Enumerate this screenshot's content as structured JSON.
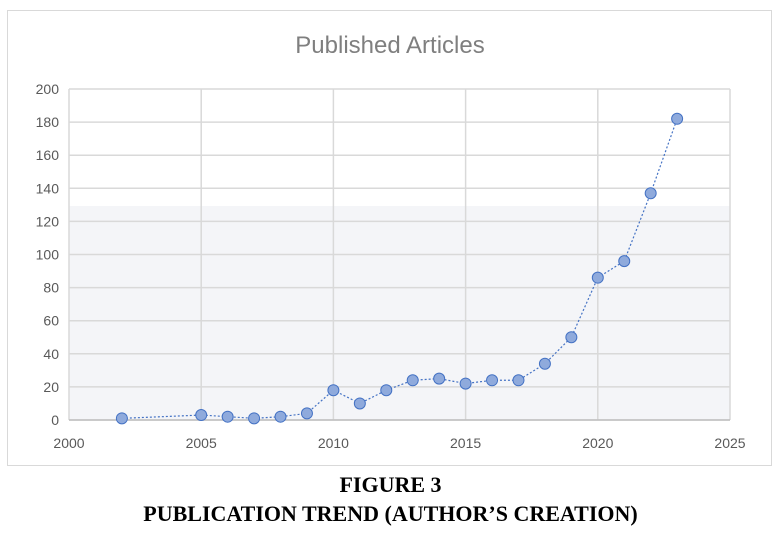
{
  "chart_data": {
    "type": "scatter",
    "title": "Published Articles",
    "xlabel": "",
    "ylabel": "",
    "xlim": [
      2000,
      2025
    ],
    "ylim": [
      0,
      200
    ],
    "xticks": [
      2000,
      2005,
      2010,
      2015,
      2020,
      2025
    ],
    "yticks": [
      0,
      20,
      40,
      60,
      80,
      100,
      120,
      140,
      160,
      180,
      200
    ],
    "grid": true,
    "connected": true,
    "marker_color": "#8faadc",
    "line_color": "#4472c4",
    "points": [
      {
        "x": 2002,
        "y": 1
      },
      {
        "x": 2005,
        "y": 3
      },
      {
        "x": 2006,
        "y": 2
      },
      {
        "x": 2007,
        "y": 1
      },
      {
        "x": 2008,
        "y": 2
      },
      {
        "x": 2009,
        "y": 4
      },
      {
        "x": 2010,
        "y": 18
      },
      {
        "x": 2011,
        "y": 10
      },
      {
        "x": 2012,
        "y": 18
      },
      {
        "x": 2013,
        "y": 24
      },
      {
        "x": 2014,
        "y": 25
      },
      {
        "x": 2015,
        "y": 22
      },
      {
        "x": 2016,
        "y": 24
      },
      {
        "x": 2017,
        "y": 24
      },
      {
        "x": 2018,
        "y": 34
      },
      {
        "x": 2019,
        "y": 50
      },
      {
        "x": 2020,
        "y": 86
      },
      {
        "x": 2021,
        "y": 96
      },
      {
        "x": 2022,
        "y": 137
      },
      {
        "x": 2023,
        "y": 182
      }
    ]
  },
  "caption": {
    "line1": "FIGURE 3",
    "line2": "PUBLICATION TREND (AUTHOR’S CREATION)"
  }
}
